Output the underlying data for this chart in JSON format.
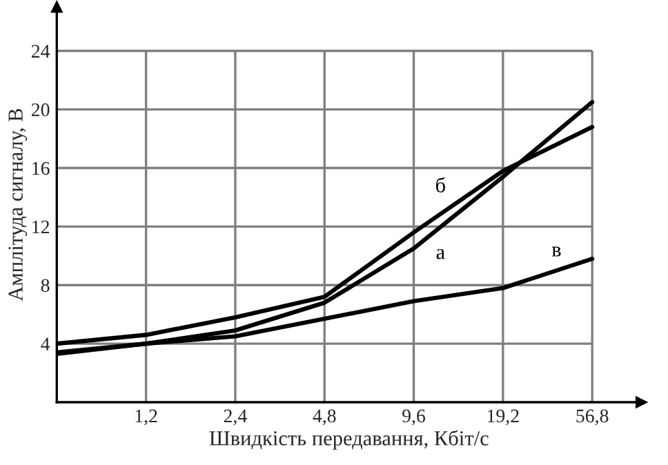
{
  "chart_data": {
    "type": "line",
    "xlabel": "Швидкість передавання, Кбіт/с",
    "ylabel": "Амплітуда сигналу, В",
    "categories": [
      null,
      "1,2",
      "2,4",
      "4,8",
      "9,6",
      "19,2",
      "56,8"
    ],
    "ylim": [
      0,
      27
    ],
    "yticks": [
      4,
      8,
      12,
      16,
      20,
      24
    ],
    "grid": true,
    "marker": "none",
    "line_style": "solid",
    "series": [
      {
        "name": "а",
        "color": "#000000",
        "values": [
          3.4,
          4.0,
          4.9,
          6.8,
          10.5,
          15.4,
          20.5
        ]
      },
      {
        "name": "б",
        "color": "#000000",
        "values": [
          4.0,
          4.6,
          5.8,
          7.2,
          11.6,
          15.8,
          18.8
        ]
      },
      {
        "name": "в",
        "color": "#000000",
        "values": [
          3.3,
          4.0,
          4.5,
          5.7,
          6.9,
          7.8,
          9.8
        ]
      }
    ]
  }
}
